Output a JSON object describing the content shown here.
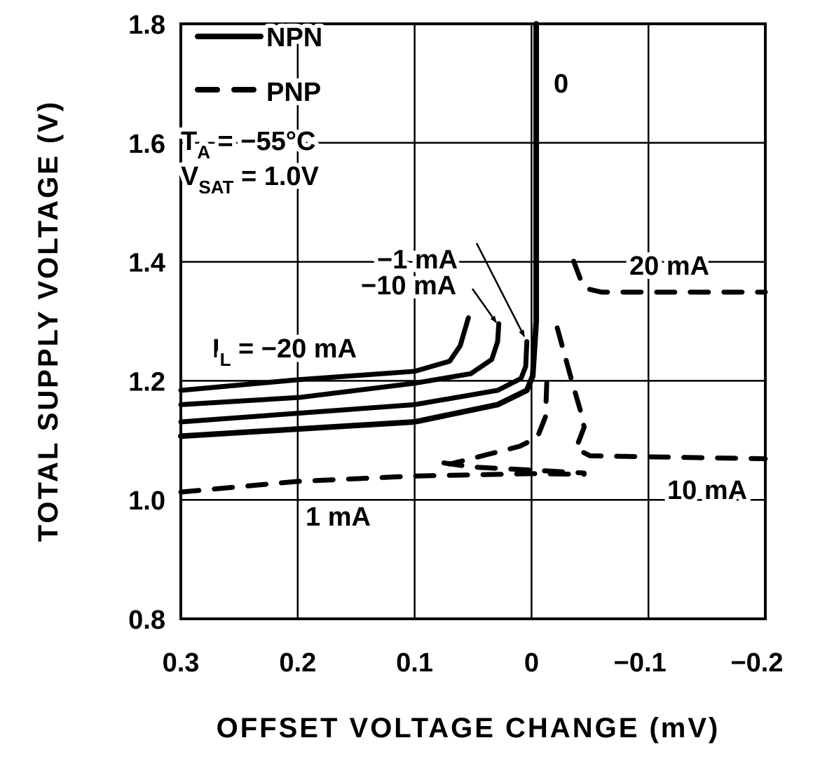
{
  "chart_data": {
    "type": "line",
    "title": "",
    "xlabel": "OFFSET VOLTAGE CHANGE (mV)",
    "ylabel": "TOTAL SUPPLY VOLTAGE (V)",
    "xlim": [
      0.3,
      -0.2
    ],
    "ylim": [
      0.8,
      1.8
    ],
    "x_reversed": true,
    "grid": true,
    "x_ticks": [
      0.3,
      0.2,
      0.1,
      0,
      -0.1,
      -0.2
    ],
    "x_tick_labels": [
      "0.3",
      "0.2",
      "0.1",
      "0",
      "−0.1",
      "−0.2"
    ],
    "y_ticks": [
      0.8,
      1.0,
      1.2,
      1.4,
      1.6,
      1.8
    ],
    "y_tick_labels": [
      "0.8",
      "1.0",
      "1.2",
      "1.4",
      "1.6",
      "1.8"
    ],
    "legend": {
      "placement": "top-left",
      "entries": [
        {
          "label": "NPN",
          "style": "solid"
        },
        {
          "label": "PNP",
          "style": "dashed"
        }
      ]
    },
    "conditions": {
      "ta_main": "T",
      "ta_sub": "A",
      "ta_rest": " = −55°C",
      "vsat_main": "V",
      "vsat_sub": "SAT",
      "vsat_rest": " = 1.0V"
    },
    "annotations": {
      "npn_0": "0",
      "npn_minus1": "−1 mA",
      "npn_minus10": "−10 mA",
      "il_main": "I",
      "il_sub": "L",
      "il_rest": " = −20 mA",
      "pnp_20": "20 mA",
      "pnp_10": "10 mA",
      "pnp_1": "1 mA"
    },
    "series": [
      {
        "name": "I_L = −20 mA",
        "type": "NPN",
        "style": "solid",
        "x": [
          0.3,
          0.199,
          0.1,
          0.07,
          0.061,
          0.054
        ],
        "y": [
          1.184,
          1.202,
          1.216,
          1.233,
          1.259,
          1.306
        ]
      },
      {
        "name": "−10 mA",
        "type": "NPN",
        "style": "solid",
        "x": [
          0.3,
          0.199,
          0.1,
          0.052,
          0.034,
          0.029,
          0.028
        ],
        "y": [
          1.16,
          1.172,
          1.196,
          1.212,
          1.236,
          1.266,
          1.296
        ]
      },
      {
        "name": "−1 mA",
        "type": "NPN",
        "style": "solid",
        "x": [
          0.3,
          0.1,
          0.029,
          0.009,
          0.005,
          0.004
        ],
        "y": [
          1.131,
          1.16,
          1.184,
          1.204,
          1.224,
          1.266
        ]
      },
      {
        "name": "0",
        "type": "NPN",
        "style": "solid",
        "heavy": true,
        "x": [
          0.3,
          0.1,
          0.029,
          0.004,
          -0.001,
          -0.004,
          -0.004
        ],
        "y": [
          1.107,
          1.131,
          1.16,
          1.184,
          1.208,
          1.3,
          1.8
        ]
      },
      {
        "name": "20 mA",
        "type": "PNP",
        "style": "dashed",
        "x": [
          -0.036,
          -0.042,
          -0.047,
          -0.06,
          -0.2
        ],
        "y": [
          1.401,
          1.37,
          1.355,
          1.349,
          1.349
        ]
      },
      {
        "name": "10 mA",
        "type": "PNP",
        "style": "dashed",
        "x": [
          -0.022,
          -0.035,
          -0.043,
          -0.045,
          -0.038,
          -0.05,
          -0.2
        ],
        "y": [
          1.289,
          1.196,
          1.142,
          1.122,
          1.086,
          1.074,
          1.069
        ]
      },
      {
        "type": "PNP",
        "style": "dashed",
        "x": [
          -0.013,
          -0.012,
          -0.005,
          0.01,
          0.04,
          0.07
        ],
        "y": [
          1.196,
          1.14,
          1.105,
          1.09,
          1.075,
          1.06
        ]
      },
      {
        "type": "PNP",
        "style": "dashed",
        "x": [
          0.075,
          0.05,
          0.0,
          -0.045
        ],
        "y": [
          1.062,
          1.055,
          1.05,
          1.045
        ]
      },
      {
        "name": "1 mA",
        "type": "PNP",
        "style": "dashed",
        "x": [
          0.3,
          0.2,
          0.1,
          0.0,
          -0.045
        ],
        "y": [
          1.013,
          1.031,
          1.04,
          1.044,
          1.043
        ]
      }
    ],
    "colors": {
      "ink": "#000000",
      "background": "#ffffff"
    }
  }
}
